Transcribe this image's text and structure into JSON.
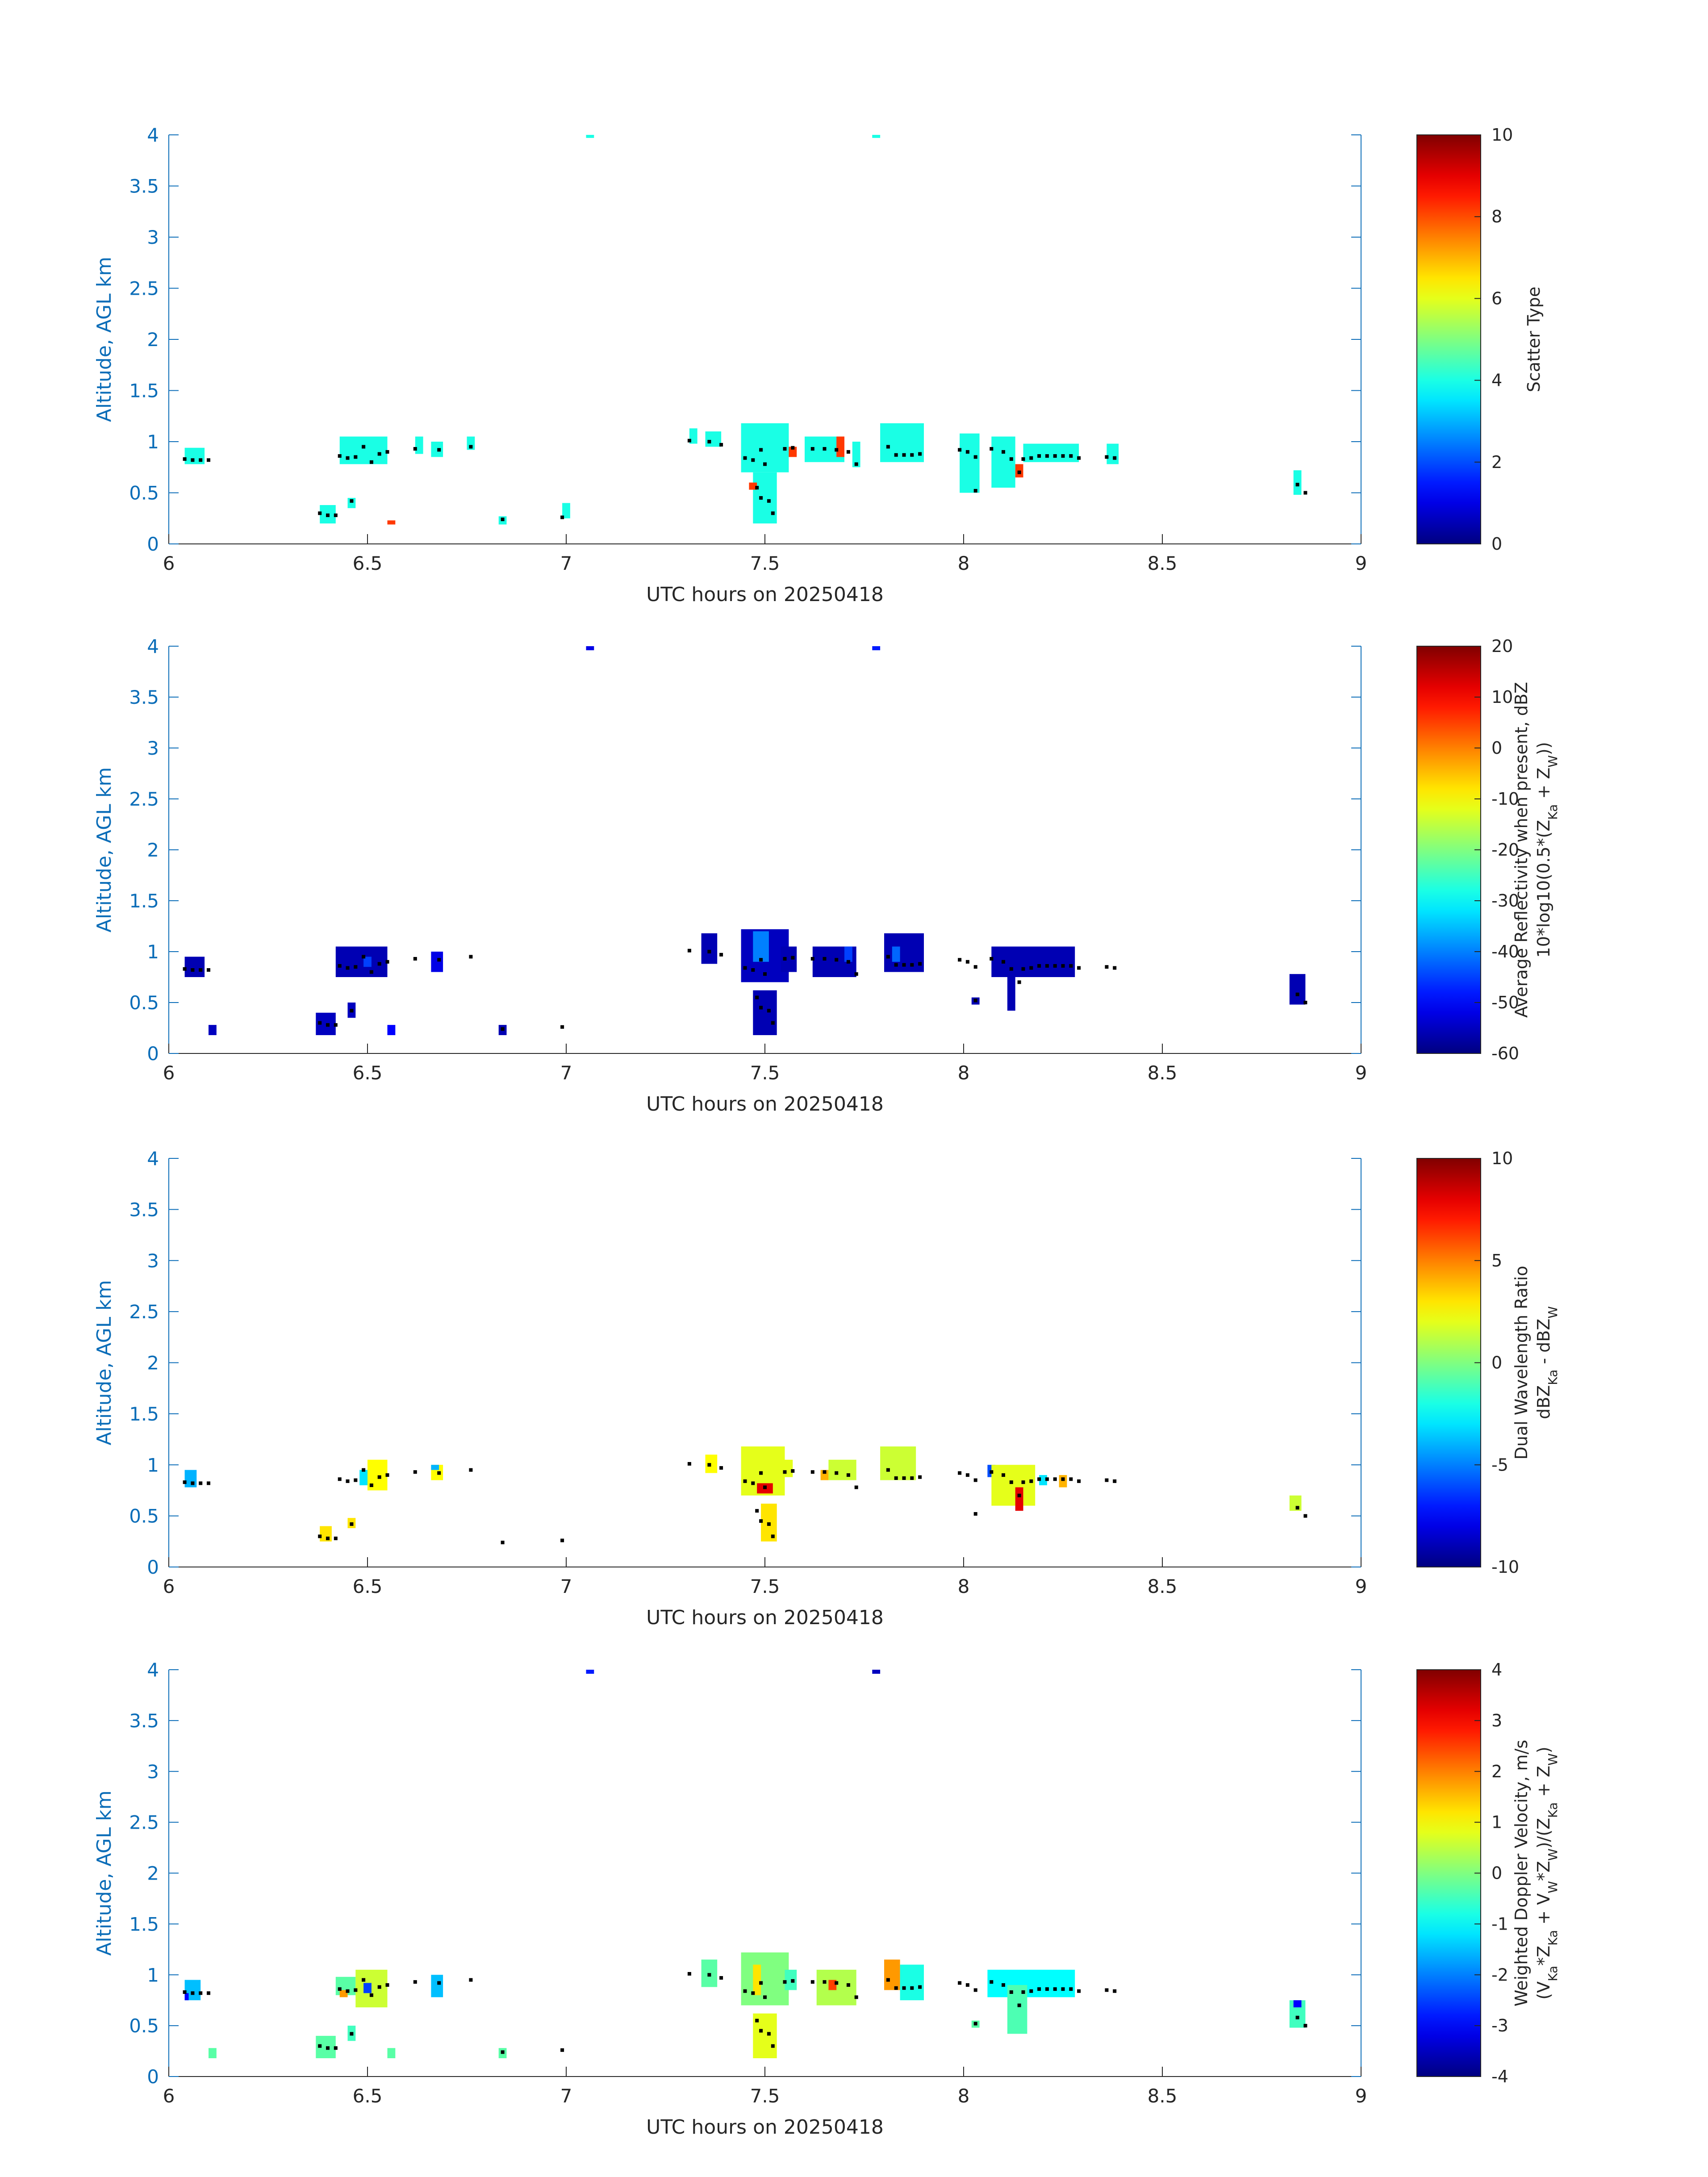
{
  "chart_data": [
    {
      "type": "heatmap",
      "xlabel": "UTC hours on 20250418",
      "ylabel": "Altitude, AGL km",
      "xlim": [
        6,
        9
      ],
      "ylim": [
        0,
        4
      ],
      "xticks": [
        "6",
        "6.5",
        "7",
        "7.5",
        "8",
        "8.5",
        "9"
      ],
      "yticks": [
        "0",
        "0.5",
        "1",
        "1.5",
        "2",
        "2.5",
        "3",
        "3.5",
        "4"
      ],
      "colorbar": {
        "label_lines": [
          "Scatter Type"
        ],
        "clim": [
          0,
          10
        ],
        "ticks": [
          "0",
          "2",
          "4",
          "6",
          "8",
          "10"
        ]
      },
      "cells": [
        [
          6.04,
          6.09,
          0.78,
          0.94,
          4
        ],
        [
          6.38,
          6.42,
          0.2,
          0.38,
          4
        ],
        [
          6.43,
          6.55,
          0.78,
          1.05,
          4
        ],
        [
          6.45,
          6.47,
          0.35,
          0.45,
          4
        ],
        [
          6.55,
          6.57,
          0.19,
          0.23,
          8.2
        ],
        [
          6.62,
          6.64,
          0.88,
          1.05,
          4
        ],
        [
          6.66,
          6.69,
          0.85,
          1.0,
          4
        ],
        [
          6.75,
          6.77,
          0.92,
          1.05,
          4
        ],
        [
          6.83,
          6.85,
          0.19,
          0.27,
          4
        ],
        [
          6.99,
          7.01,
          0.25,
          0.4,
          4
        ],
        [
          7.05,
          7.07,
          3.97,
          4.0,
          4
        ],
        [
          7.31,
          7.33,
          0.98,
          1.13,
          4
        ],
        [
          7.35,
          7.39,
          0.95,
          1.1,
          4
        ],
        [
          7.44,
          7.56,
          0.7,
          1.18,
          4
        ],
        [
          7.47,
          7.53,
          0.2,
          0.7,
          4
        ],
        [
          7.46,
          7.48,
          0.53,
          0.6,
          8.2
        ],
        [
          7.56,
          7.58,
          0.85,
          0.95,
          8.2
        ],
        [
          7.6,
          7.7,
          0.8,
          1.05,
          4
        ],
        [
          7.68,
          7.7,
          0.85,
          1.05,
          8.2
        ],
        [
          7.72,
          7.74,
          0.75,
          1.0,
          4
        ],
        [
          7.77,
          7.79,
          3.97,
          4.0,
          4
        ],
        [
          7.79,
          7.9,
          0.8,
          1.18,
          4
        ],
        [
          7.99,
          8.04,
          0.5,
          1.08,
          4
        ],
        [
          8.07,
          8.13,
          0.55,
          1.05,
          4
        ],
        [
          8.13,
          8.15,
          0.65,
          0.78,
          8.2
        ],
        [
          8.15,
          8.29,
          0.8,
          0.98,
          4
        ],
        [
          8.36,
          8.39,
          0.78,
          0.98,
          4
        ],
        [
          8.83,
          8.85,
          0.48,
          0.72,
          4
        ]
      ]
    },
    {
      "type": "heatmap",
      "xlabel": "UTC hours on 20250418",
      "ylabel": "Altitude, AGL km",
      "xlim": [
        6,
        9
      ],
      "ylim": [
        0,
        4
      ],
      "xticks": [
        "6",
        "6.5",
        "7",
        "7.5",
        "8",
        "8.5",
        "9"
      ],
      "yticks": [
        "0",
        "0.5",
        "1",
        "1.5",
        "2",
        "2.5",
        "3",
        "3.5",
        "4"
      ],
      "colorbar": {
        "label_lines": [
          "Average Reflectivity when present, dBZ",
          "10*log10(0.5*(Z_Ka + Z_W))"
        ],
        "clim": [
          -60,
          20
        ],
        "ticks": [
          "-60",
          "-50",
          "-40",
          "-30",
          "-20",
          "-10",
          "0",
          "10",
          "20"
        ]
      },
      "cells": [
        [
          6.04,
          6.09,
          0.75,
          0.95,
          -56
        ],
        [
          6.1,
          6.12,
          0.18,
          0.28,
          -55
        ],
        [
          6.37,
          6.42,
          0.18,
          0.4,
          -55
        ],
        [
          6.42,
          6.55,
          0.75,
          1.05,
          -56
        ],
        [
          6.49,
          6.51,
          0.85,
          0.95,
          -45
        ],
        [
          6.45,
          6.47,
          0.35,
          0.5,
          -55
        ],
        [
          6.55,
          6.57,
          0.18,
          0.28,
          -50
        ],
        [
          6.66,
          6.69,
          0.8,
          1.0,
          -52
        ],
        [
          6.83,
          6.85,
          0.18,
          0.28,
          -56
        ],
        [
          7.05,
          7.07,
          3.96,
          4.0,
          -52
        ],
        [
          7.34,
          7.38,
          0.88,
          1.18,
          -56
        ],
        [
          7.44,
          7.56,
          0.7,
          1.22,
          -55
        ],
        [
          7.47,
          7.51,
          0.9,
          1.2,
          -40
        ],
        [
          7.47,
          7.53,
          0.18,
          0.62,
          -56
        ],
        [
          7.54,
          7.58,
          0.8,
          1.05,
          -56
        ],
        [
          7.62,
          7.73,
          0.75,
          1.05,
          -56
        ],
        [
          7.7,
          7.72,
          0.9,
          1.05,
          -45
        ],
        [
          7.77,
          7.79,
          3.96,
          4.0,
          -48
        ],
        [
          7.8,
          7.9,
          0.8,
          1.18,
          -56
        ],
        [
          7.82,
          7.84,
          0.9,
          1.05,
          -42
        ],
        [
          8.02,
          8.04,
          0.48,
          0.55,
          -56
        ],
        [
          8.07,
          8.28,
          0.75,
          1.05,
          -56
        ],
        [
          8.11,
          8.13,
          0.42,
          0.75,
          -56
        ],
        [
          8.82,
          8.86,
          0.48,
          0.78,
          -56
        ]
      ]
    },
    {
      "type": "heatmap",
      "xlabel": "UTC hours on 20250418",
      "ylabel": "Altitude, AGL km",
      "xlim": [
        6,
        9
      ],
      "ylim": [
        0,
        4
      ],
      "xticks": [
        "6",
        "6.5",
        "7",
        "7.5",
        "8",
        "8.5",
        "9"
      ],
      "yticks": [
        "0",
        "0.5",
        "1",
        "1.5",
        "2",
        "2.5",
        "3",
        "3.5",
        "4"
      ],
      "colorbar": {
        "label_lines": [
          "Dual Wavelength Ratio",
          "dBZ_Ka - dBZ_W"
        ],
        "clim": [
          -10,
          10
        ],
        "ticks": [
          "-10",
          "-5",
          "0",
          "5",
          "10"
        ]
      },
      "cells": [
        [
          6.04,
          6.07,
          0.78,
          0.95,
          -4
        ],
        [
          6.38,
          6.41,
          0.25,
          0.4,
          3
        ],
        [
          6.45,
          6.47,
          0.38,
          0.48,
          3
        ],
        [
          6.48,
          6.5,
          0.8,
          0.95,
          -3
        ],
        [
          6.5,
          6.55,
          0.75,
          1.05,
          2.5
        ],
        [
          6.66,
          6.69,
          0.85,
          1.0,
          2.5
        ],
        [
          6.66,
          6.68,
          0.95,
          1.0,
          -4
        ],
        [
          7.35,
          7.38,
          0.92,
          1.1,
          2.5
        ],
        [
          7.44,
          7.55,
          0.7,
          1.18,
          2
        ],
        [
          7.48,
          7.52,
          0.72,
          0.82,
          8
        ],
        [
          7.49,
          7.53,
          0.25,
          0.62,
          3
        ],
        [
          7.54,
          7.57,
          0.88,
          1.05,
          2
        ],
        [
          7.64,
          7.66,
          0.85,
          0.95,
          4
        ],
        [
          7.66,
          7.73,
          0.85,
          1.05,
          1.5
        ],
        [
          7.79,
          7.88,
          0.85,
          1.18,
          1.5
        ],
        [
          8.06,
          8.08,
          0.88,
          1.0,
          -6
        ],
        [
          8.07,
          8.18,
          0.6,
          1.0,
          2
        ],
        [
          8.13,
          8.15,
          0.55,
          0.78,
          8
        ],
        [
          8.19,
          8.21,
          0.8,
          0.9,
          -3
        ],
        [
          8.24,
          8.26,
          0.78,
          0.9,
          4
        ],
        [
          8.82,
          8.85,
          0.55,
          0.7,
          1.5
        ]
      ]
    },
    {
      "type": "heatmap",
      "xlabel": "UTC hours on 20250418",
      "ylabel": "Altitude, AGL km",
      "xlim": [
        6,
        9
      ],
      "ylim": [
        0,
        4
      ],
      "xticks": [
        "6",
        "6.5",
        "7",
        "7.5",
        "8",
        "8.5",
        "9"
      ],
      "yticks": [
        "0",
        "0.5",
        "1",
        "1.5",
        "2",
        "2.5",
        "3",
        "3.5",
        "4"
      ],
      "colorbar": {
        "label_lines": [
          "Weighted Doppler Velocity, m/s",
          "(V_Ka*Z_Ka + V_W*Z_W)/(Z_Ka + Z_W)"
        ],
        "clim": [
          -4,
          4
        ],
        "ticks": [
          "-4",
          "-3",
          "-2",
          "-1",
          "0",
          "1",
          "2",
          "3",
          "4"
        ]
      },
      "cells": [
        [
          6.04,
          6.08,
          0.75,
          0.95,
          -1.5
        ],
        [
          6.04,
          6.05,
          0.75,
          0.82,
          -3
        ],
        [
          6.1,
          6.12,
          0.18,
          0.28,
          -0.3
        ],
        [
          6.37,
          6.42,
          0.18,
          0.4,
          -0.3
        ],
        [
          6.42,
          6.47,
          0.8,
          0.98,
          -0.3
        ],
        [
          6.43,
          6.45,
          0.78,
          0.85,
          1.8
        ],
        [
          6.45,
          6.47,
          0.35,
          0.5,
          -0.5
        ],
        [
          6.47,
          6.55,
          0.68,
          1.05,
          0.6
        ],
        [
          6.49,
          6.51,
          0.82,
          0.92,
          -2.5
        ],
        [
          6.55,
          6.57,
          0.18,
          0.28,
          -0.3
        ],
        [
          6.66,
          6.69,
          0.78,
          1.0,
          -1.5
        ],
        [
          6.83,
          6.85,
          0.18,
          0.28,
          -0.3
        ],
        [
          7.05,
          7.07,
          3.96,
          4.0,
          -2.8
        ],
        [
          7.34,
          7.38,
          0.88,
          1.15,
          -0.3
        ],
        [
          7.44,
          7.56,
          0.7,
          1.22,
          0
        ],
        [
          7.47,
          7.49,
          0.8,
          1.1,
          1.2
        ],
        [
          7.47,
          7.53,
          0.18,
          0.62,
          0.8
        ],
        [
          7.55,
          7.58,
          0.85,
          1.05,
          -0.5
        ],
        [
          7.63,
          7.73,
          0.7,
          1.05,
          0.4
        ],
        [
          7.66,
          7.68,
          0.85,
          0.95,
          2.5
        ],
        [
          7.77,
          7.79,
          3.96,
          4.0,
          -3.5
        ],
        [
          7.8,
          7.84,
          0.85,
          1.15,
          1.8
        ],
        [
          7.84,
          7.9,
          0.75,
          1.1,
          -0.8
        ],
        [
          8.02,
          8.04,
          0.48,
          0.55,
          -0.3
        ],
        [
          8.06,
          8.28,
          0.78,
          1.05,
          -1
        ],
        [
          8.11,
          8.16,
          0.42,
          0.9,
          -0.4
        ],
        [
          8.82,
          8.86,
          0.48,
          0.75,
          -0.5
        ],
        [
          8.83,
          8.85,
          0.68,
          0.75,
          -3
        ]
      ]
    }
  ],
  "markers": {
    "color": "#000000",
    "points": [
      [
        6.04,
        0.83
      ],
      [
        6.06,
        0.82
      ],
      [
        6.08,
        0.82
      ],
      [
        6.1,
        0.82
      ],
      [
        6.38,
        0.3
      ],
      [
        6.4,
        0.28
      ],
      [
        6.42,
        0.28
      ],
      [
        6.43,
        0.86
      ],
      [
        6.45,
        0.84
      ],
      [
        6.47,
        0.85
      ],
      [
        6.49,
        0.95
      ],
      [
        6.51,
        0.8
      ],
      [
        6.53,
        0.88
      ],
      [
        6.55,
        0.9
      ],
      [
        6.46,
        0.42
      ],
      [
        6.62,
        0.93
      ],
      [
        6.68,
        0.92
      ],
      [
        6.76,
        0.95
      ],
      [
        6.84,
        0.24
      ],
      [
        6.99,
        0.26
      ],
      [
        7.31,
        1.01
      ],
      [
        7.36,
        1.0
      ],
      [
        7.39,
        0.97
      ],
      [
        7.45,
        0.84
      ],
      [
        7.47,
        0.82
      ],
      [
        7.49,
        0.92
      ],
      [
        7.5,
        0.78
      ],
      [
        7.48,
        0.55
      ],
      [
        7.49,
        0.45
      ],
      [
        7.51,
        0.42
      ],
      [
        7.52,
        0.3
      ],
      [
        7.55,
        0.93
      ],
      [
        7.57,
        0.94
      ],
      [
        7.62,
        0.93
      ],
      [
        7.65,
        0.93
      ],
      [
        7.68,
        0.92
      ],
      [
        7.71,
        0.9
      ],
      [
        7.73,
        0.78
      ],
      [
        7.81,
        0.95
      ],
      [
        7.83,
        0.87
      ],
      [
        7.85,
        0.87
      ],
      [
        7.87,
        0.87
      ],
      [
        7.89,
        0.88
      ],
      [
        7.99,
        0.92
      ],
      [
        8.01,
        0.9
      ],
      [
        8.03,
        0.85
      ],
      [
        8.03,
        0.52
      ],
      [
        8.07,
        0.93
      ],
      [
        8.1,
        0.9
      ],
      [
        8.12,
        0.83
      ],
      [
        8.14,
        0.7
      ],
      [
        8.15,
        0.83
      ],
      [
        8.17,
        0.84
      ],
      [
        8.19,
        0.86
      ],
      [
        8.21,
        0.86
      ],
      [
        8.23,
        0.86
      ],
      [
        8.25,
        0.86
      ],
      [
        8.27,
        0.86
      ],
      [
        8.29,
        0.84
      ],
      [
        8.36,
        0.85
      ],
      [
        8.38,
        0.84
      ],
      [
        8.84,
        0.58
      ],
      [
        8.86,
        0.5
      ]
    ]
  }
}
